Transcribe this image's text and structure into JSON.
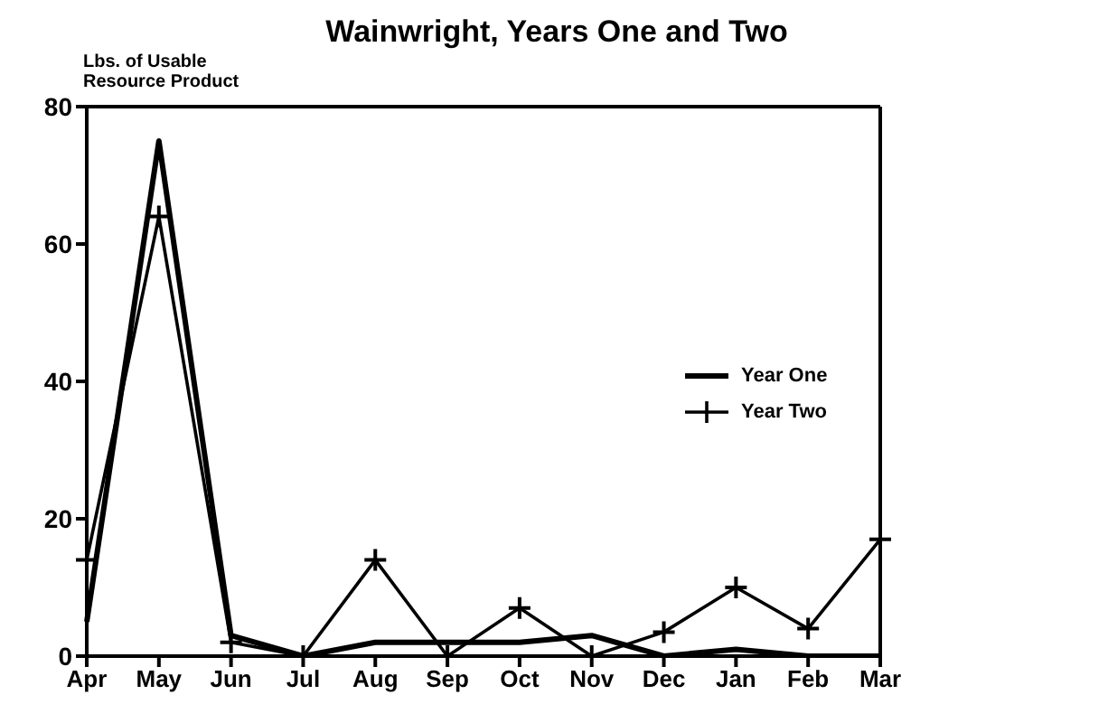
{
  "chart_data": {
    "type": "line",
    "title": "Wainwright, Years One and Two",
    "ylabel": "Lbs. of Usable Resource Product",
    "categories": [
      "Apr",
      "May",
      "Jun",
      "Jul",
      "Aug",
      "Sep",
      "Oct",
      "Nov",
      "Dec",
      "Jan",
      "Feb",
      "Mar"
    ],
    "series": [
      {
        "name": "Year One",
        "color": "#000000",
        "marker": "none",
        "values": [
          5,
          75,
          3,
          0,
          2,
          2,
          2,
          3,
          0,
          1,
          0,
          0
        ]
      },
      {
        "name": "Year Two",
        "color": "#000000",
        "marker": "cross",
        "values": [
          14,
          64,
          2,
          0,
          14,
          0,
          7,
          0,
          3.5,
          10,
          4,
          17
        ]
      }
    ],
    "ylim": [
      0,
      80
    ],
    "yticks": [
      0,
      20,
      40,
      60,
      80
    ],
    "grid": false,
    "legend": "right",
    "line_style": "solid"
  }
}
